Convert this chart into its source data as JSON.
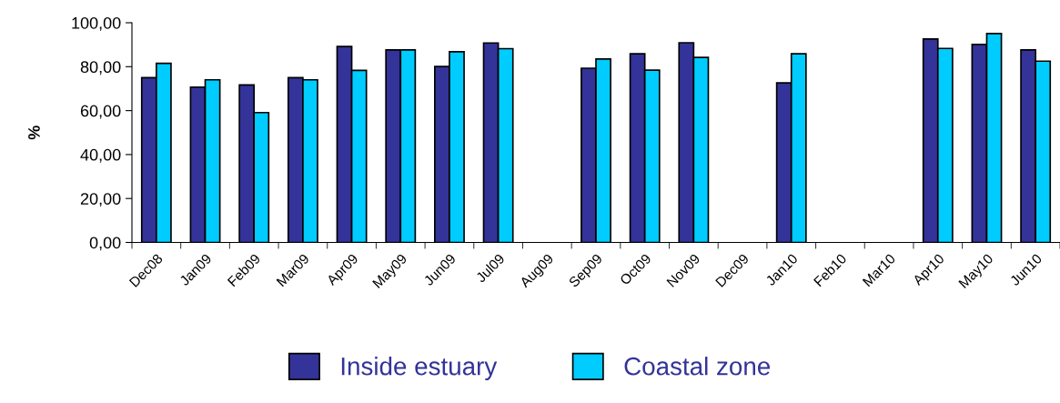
{
  "chart_data": {
    "type": "bar",
    "ylabel": "%",
    "categories": [
      "Dec08",
      "Jan09",
      "Feb09",
      "Mar09",
      "Apr09",
      "May09",
      "Jun09",
      "Jul09",
      "Aug09",
      "Sep09",
      "Oct09",
      "Nov09",
      "Dec09",
      "Jan10",
      "Feb10",
      "Mar10",
      "Apr10",
      "May10",
      "Jun10"
    ],
    "series": [
      {
        "name": "Inside estuary",
        "color": "#333399",
        "values": [
          75.0,
          70.7,
          71.7,
          75.0,
          89.2,
          87.6,
          80.1,
          90.8,
          null,
          79.3,
          85.9,
          90.9,
          null,
          72.6,
          null,
          null,
          92.6,
          90.1,
          87.6
        ]
      },
      {
        "name": "Coastal zone",
        "color": "#00ccff",
        "values": [
          81.5,
          74.0,
          59.1,
          74.0,
          78.3,
          87.6,
          86.8,
          88.2,
          null,
          83.5,
          78.4,
          84.2,
          null,
          85.9,
          null,
          null,
          88.3,
          95.1,
          82.5
        ]
      }
    ],
    "ylim": [
      0,
      100
    ],
    "yticks": [
      {
        "value": 0,
        "label": "0,00"
      },
      {
        "value": 20,
        "label": "20,00"
      },
      {
        "value": 40,
        "label": "40,00"
      },
      {
        "value": 60,
        "label": "60,00"
      },
      {
        "value": 80,
        "label": "80,00"
      },
      {
        "value": 100,
        "label": "100,00"
      }
    ],
    "grid": false,
    "legend": "bottom"
  }
}
